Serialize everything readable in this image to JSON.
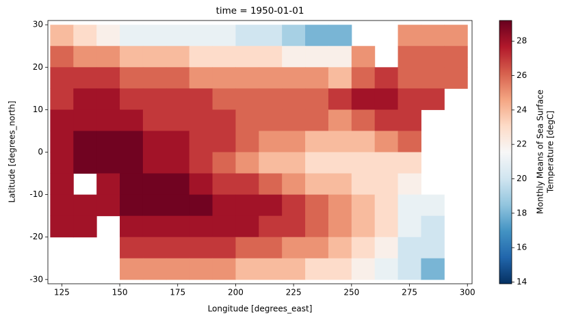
{
  "chart_data": {
    "type": "heatmap",
    "title": "time = 1950-01-01",
    "xlabel": "Longitude [degrees_east]",
    "ylabel": "Latitude [degrees_north]",
    "colorbar_label": [
      "Monthly Means of Sea Surface",
      "Temperature [degC]"
    ],
    "x": [
      125,
      135,
      145,
      155,
      165,
      175,
      185,
      195,
      205,
      215,
      225,
      235,
      245,
      255,
      265,
      275,
      285,
      295
    ],
    "y": [
      27.5,
      22.5,
      17.5,
      12.5,
      7.5,
      2.5,
      -2.5,
      -7.5,
      -12.5,
      -17.5,
      -22.5,
      -27.5
    ],
    "values": [
      [
        24,
        23,
        22,
        21,
        21,
        21,
        21,
        21,
        20,
        20,
        19,
        18,
        18,
        null,
        null,
        25,
        25,
        25
      ],
      [
        26,
        25,
        25,
        24,
        24,
        24,
        23,
        23,
        23,
        23,
        22,
        22,
        22,
        25,
        null,
        26,
        26,
        26
      ],
      [
        27,
        27,
        27,
        26,
        26,
        26,
        25,
        25,
        25,
        25,
        25,
        25,
        24,
        26,
        27,
        26,
        26,
        26
      ],
      [
        27,
        28,
        28,
        27,
        27,
        27,
        27,
        26,
        26,
        26,
        26,
        26,
        27,
        28,
        28,
        27,
        27,
        null
      ],
      [
        28,
        28,
        28,
        28,
        27,
        27,
        27,
        27,
        26,
        26,
        26,
        26,
        25,
        26,
        27,
        27,
        null,
        null
      ],
      [
        28,
        29,
        29,
        29,
        28,
        28,
        27,
        27,
        26,
        25,
        25,
        24,
        24,
        24,
        25,
        26,
        null,
        null
      ],
      [
        28,
        29,
        29,
        29,
        28,
        28,
        27,
        26,
        25,
        24,
        24,
        23,
        23,
        23,
        23,
        23,
        null,
        null
      ],
      [
        28,
        null,
        28,
        29,
        29,
        29,
        28,
        27,
        27,
        26,
        25,
        24,
        24,
        23,
        23,
        22,
        null,
        null
      ],
      [
        28,
        28,
        28,
        29,
        29,
        29,
        29,
        28,
        28,
        28,
        27,
        26,
        25,
        24,
        23,
        21,
        21,
        null
      ],
      [
        28,
        28,
        null,
        28,
        28,
        28,
        28,
        28,
        28,
        27,
        27,
        26,
        25,
        24,
        23,
        21,
        20,
        null
      ],
      [
        null,
        null,
        null,
        27,
        27,
        27,
        27,
        27,
        26,
        26,
        25,
        25,
        24,
        23,
        22,
        20,
        20,
        null
      ],
      [
        null,
        null,
        null,
        25,
        25,
        25,
        25,
        25,
        24,
        24,
        24,
        23,
        23,
        22,
        21,
        20,
        18,
        null
      ]
    ],
    "colormap": [
      "#053061",
      "#2166ac",
      "#4393c3",
      "#92c5de",
      "#d1e5f0",
      "#f7f7f7",
      "#fddbc7",
      "#f4a582",
      "#d6604d",
      "#b2182b",
      "#67001f"
    ],
    "clim": [
      13.9,
      29.2
    ],
    "cticks": [
      14,
      16,
      18,
      20,
      22,
      24,
      26,
      28
    ],
    "xlim": [
      119,
      302
    ],
    "xticks": [
      125,
      150,
      175,
      200,
      225,
      250,
      275,
      300
    ],
    "ylim": [
      -31,
      31
    ],
    "yticks": [
      -30,
      -20,
      -10,
      0,
      10,
      20,
      30
    ]
  }
}
